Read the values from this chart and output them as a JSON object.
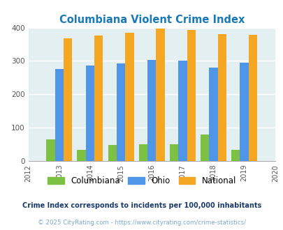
{
  "title": "Columbiana Violent Crime Index",
  "years": [
    2013,
    2014,
    2015,
    2016,
    2017,
    2018,
    2019
  ],
  "columbiana": [
    65,
    33,
    48,
    51,
    50,
    80,
    33
  ],
  "ohio": [
    276,
    287,
    292,
    302,
    300,
    281,
    294
  ],
  "national": [
    368,
    376,
    384,
    398,
    393,
    381,
    378
  ],
  "color_columbiana": "#7dc142",
  "color_ohio": "#4f96e8",
  "color_national": "#f5a623",
  "background_color": "#e4eff2",
  "xlim": [
    2012,
    2020
  ],
  "ylim": [
    0,
    400
  ],
  "yticks": [
    0,
    100,
    200,
    300,
    400
  ],
  "bar_width": 0.28,
  "footnote1": "Crime Index corresponds to incidents per 100,000 inhabitants",
  "footnote2": "© 2025 CityRating.com - https://www.cityrating.com/crime-statistics/",
  "title_color": "#1a7ab8",
  "footnote1_color": "#1a3a6b",
  "footnote2_color": "#7fa8c8"
}
